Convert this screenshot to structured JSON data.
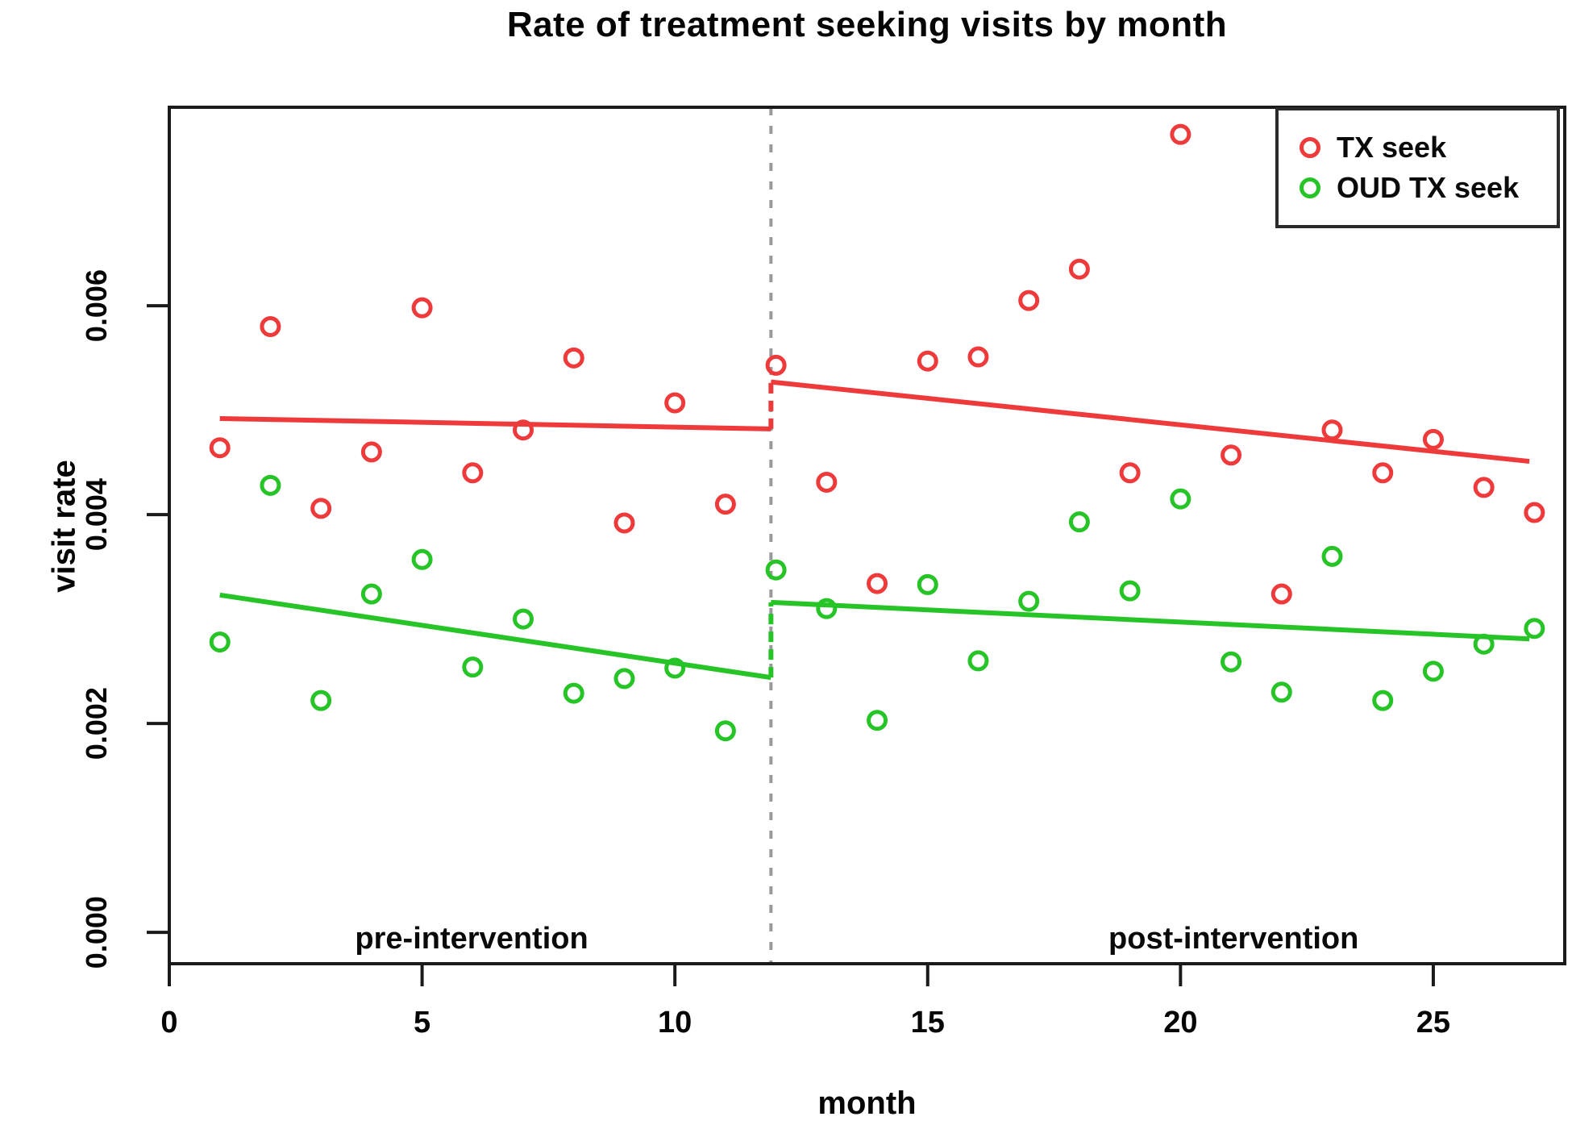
{
  "title": "Rate of treatment seeking visits by month",
  "colors": {
    "tx_seek": "#ee3a3a",
    "oud_tx_seek": "#27c427",
    "intervention_line": "#9a9a9a",
    "axis": "#1a1a1a",
    "text": "#050505"
  },
  "legend": {
    "position": "top-right"
  },
  "chart_data": {
    "type": "scatter",
    "title": "Rate of treatment seeking visits by month",
    "xlabel": "month",
    "ylabel": "visit rate",
    "xlim": [
      0,
      27.6
    ],
    "ylim": [
      -0.0003,
      0.0079
    ],
    "grid": false,
    "x_ticks": [
      0,
      5,
      10,
      15,
      20,
      25
    ],
    "y_ticks": [
      {
        "value": 0.0,
        "label": "0.000"
      },
      {
        "value": 0.002,
        "label": "0.002"
      },
      {
        "value": 0.004,
        "label": "0.004"
      },
      {
        "value": 0.006,
        "label": "0.006"
      }
    ],
    "intervention_month": 11.9,
    "x": [
      1,
      2,
      3,
      4,
      5,
      6,
      7,
      8,
      9,
      10,
      11,
      12,
      13,
      14,
      15,
      16,
      17,
      18,
      19,
      20,
      21,
      22,
      23,
      24,
      25,
      26,
      27
    ],
    "series": [
      {
        "name": "TX seek",
        "color": "#ee3a3a",
        "values": [
          0.00464,
          0.0058,
          0.00406,
          0.0046,
          0.00598,
          0.0044,
          0.00481,
          0.0055,
          0.00392,
          0.00507,
          0.0041,
          0.00543,
          0.00431,
          0.00334,
          0.00547,
          0.00551,
          0.00605,
          0.00635,
          0.0044,
          0.00764,
          0.00457,
          0.00324,
          0.00481,
          0.0044,
          0.00472,
          0.00426,
          0.00402
        ]
      },
      {
        "name": "OUD TX seek",
        "color": "#27c427",
        "values": [
          0.00278,
          0.00428,
          0.00222,
          0.00324,
          0.00357,
          0.00254,
          0.003,
          0.00229,
          0.00243,
          0.00253,
          0.00193,
          0.00347,
          0.0031,
          0.00203,
          0.00333,
          0.0026,
          0.00317,
          0.00393,
          0.00327,
          0.00415,
          0.00259,
          0.0023,
          0.0036,
          0.00222,
          0.0025,
          0.00276,
          0.00291
        ]
      }
    ],
    "trend_segments": [
      {
        "series": "TX seek",
        "color": "#ee3a3a",
        "x1": 1.0,
        "y1": 0.00492,
        "x2": 11.9,
        "y2": 0.00482,
        "style": "solid"
      },
      {
        "series": "TX seek",
        "color": "#ee3a3a",
        "x1": 11.9,
        "y1": 0.00482,
        "x2": 11.9,
        "y2": 0.00527,
        "style": "dashed"
      },
      {
        "series": "TX seek",
        "color": "#ee3a3a",
        "x1": 11.9,
        "y1": 0.00527,
        "x2": 26.9,
        "y2": 0.00451,
        "style": "solid"
      },
      {
        "series": "OUD TX seek",
        "color": "#27c427",
        "x1": 1.0,
        "y1": 0.00323,
        "x2": 11.9,
        "y2": 0.00244,
        "style": "solid"
      },
      {
        "series": "OUD TX seek",
        "color": "#27c427",
        "x1": 11.9,
        "y1": 0.00244,
        "x2": 11.9,
        "y2": 0.00316,
        "style": "dashed"
      },
      {
        "series": "OUD TX seek",
        "color": "#27c427",
        "x1": 11.9,
        "y1": 0.00316,
        "x2": 26.9,
        "y2": 0.00281,
        "style": "solid"
      }
    ],
    "annotations": [
      {
        "text": "pre-intervention",
        "x": 5.98,
        "y": -0.000155
      },
      {
        "text": "post-intervention",
        "x": 21.05,
        "y": -0.000155
      }
    ],
    "legend_entries": [
      "TX seek",
      "OUD TX seek"
    ]
  }
}
